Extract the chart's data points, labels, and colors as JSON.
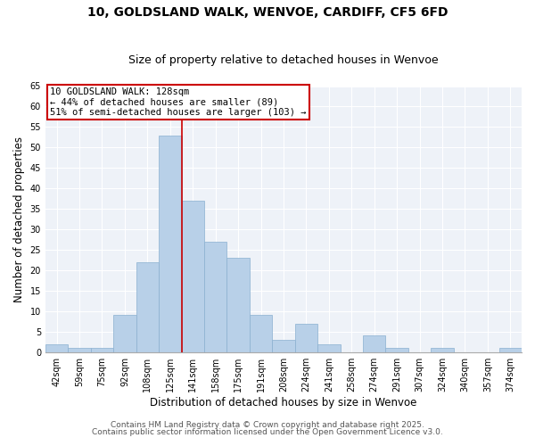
{
  "title1": "10, GOLDSLAND WALK, WENVOE, CARDIFF, CF5 6FD",
  "title2": "Size of property relative to detached houses in Wenvoe",
  "xlabel": "Distribution of detached houses by size in Wenvoe",
  "ylabel": "Number of detached properties",
  "categories": [
    "42sqm",
    "59sqm",
    "75sqm",
    "92sqm",
    "108sqm",
    "125sqm",
    "141sqm",
    "158sqm",
    "175sqm",
    "191sqm",
    "208sqm",
    "224sqm",
    "241sqm",
    "258sqm",
    "274sqm",
    "291sqm",
    "307sqm",
    "324sqm",
    "340sqm",
    "357sqm",
    "374sqm"
  ],
  "values": [
    2,
    1,
    1,
    9,
    22,
    53,
    37,
    27,
    23,
    9,
    3,
    7,
    2,
    0,
    4,
    1,
    0,
    1,
    0,
    0,
    1
  ],
  "bar_color": "#b8d0e8",
  "bar_edgecolor": "#8ab0d0",
  "marker_index": 5,
  "marker_line_color": "#cc0000",
  "annotation_line1": "10 GOLDSLAND WALK: 128sqm",
  "annotation_line2": "← 44% of detached houses are smaller (89)",
  "annotation_line3": "51% of semi-detached houses are larger (103) →",
  "annotation_box_facecolor": "#ffffff",
  "annotation_box_edgecolor": "#cc0000",
  "ylim": [
    0,
    65
  ],
  "yticks": [
    0,
    5,
    10,
    15,
    20,
    25,
    30,
    35,
    40,
    45,
    50,
    55,
    60,
    65
  ],
  "plot_bg_color": "#eef2f8",
  "footer1": "Contains HM Land Registry data © Crown copyright and database right 2025.",
  "footer2": "Contains public sector information licensed under the Open Government Licence v3.0.",
  "title_fontsize": 10,
  "subtitle_fontsize": 9,
  "axis_label_fontsize": 8.5,
  "tick_fontsize": 7,
  "annotation_fontsize": 7.5,
  "footer_fontsize": 6.5
}
